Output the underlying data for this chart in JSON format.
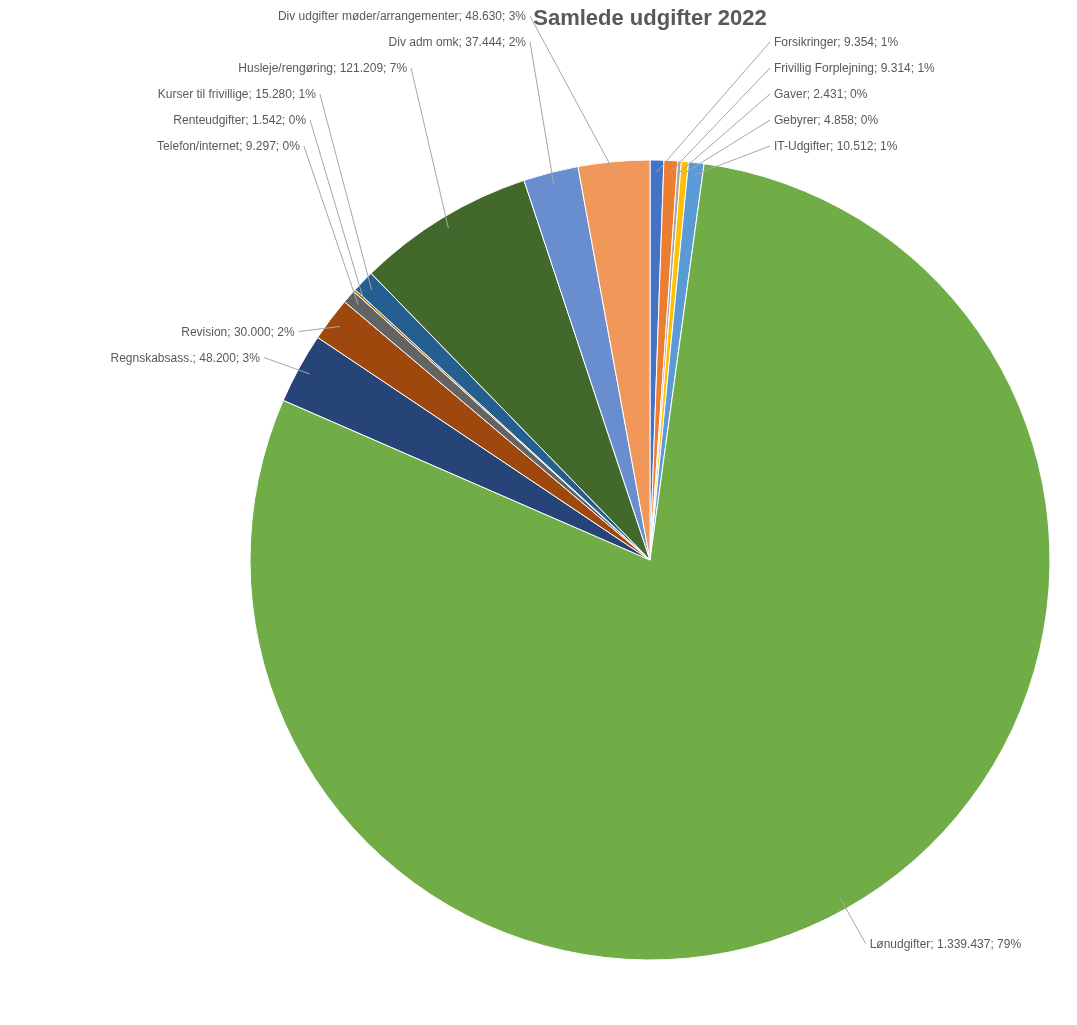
{
  "chart_data": {
    "type": "pie",
    "title": "Samlede udgifter 2022",
    "categories": [
      "Forsikringer",
      "Frivillig Forplejning",
      "Gaver",
      "Gebyrer",
      "IT-Udgifter",
      "Lønudgifter",
      "Regnskabsass.",
      "Revision",
      "Telefon/internet",
      "Renteudgifter",
      "Kurser til frivillige",
      "Husleje/rengøring",
      "Div adm omk",
      "Div udgifter møder/arrangementer"
    ],
    "values": [
      9354,
      9314,
      2431,
      4858,
      10512,
      1339437,
      48200,
      30000,
      9297,
      1542,
      15280,
      121209,
      37444,
      48630
    ],
    "value_labels": [
      "9.354; 1%",
      "9.314; 1%",
      "2.431; 0%",
      "4.858; 0%",
      "10.512; 1%",
      "1.339.437; 79%",
      "48.200; 3%",
      "30.000; 2%",
      "9.297; 0%",
      "1.542; 0%",
      "15.280; 1%",
      "121.209; 7%",
      "37.444; 2%",
      "48.630; 3%"
    ],
    "colors": [
      "#4472c4",
      "#ed7d31",
      "#a5a5a5",
      "#ffc000",
      "#5b9bd5",
      "#70ad47",
      "#264478",
      "#9e480e",
      "#636363",
      "#997300",
      "#255e91",
      "#43682b",
      "#698ed0",
      "#f1975a"
    ],
    "legend": false
  }
}
